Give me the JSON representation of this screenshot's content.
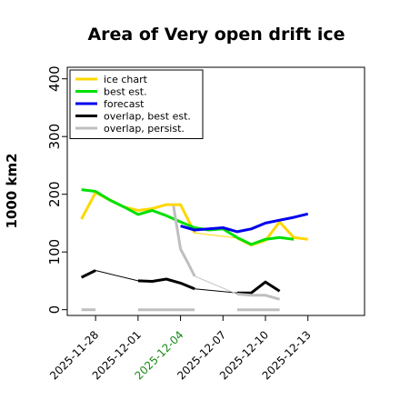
{
  "chart_data": {
    "type": "line",
    "title": "Area of Very open drift ice",
    "ylabel": "1000 km2",
    "ylim": [
      -10,
      420
    ],
    "yticks": [
      0,
      100,
      200,
      300,
      400
    ],
    "xlim": [
      -4,
      38
    ],
    "xticks": [
      {
        "x": 0,
        "label": "2025-11-28",
        "color": "#000000"
      },
      {
        "x": 6,
        "label": "2025-12-01",
        "color": "#000000"
      },
      {
        "x": 12,
        "label": "2025-12-04",
        "color": "#1a8a1a"
      },
      {
        "x": 18,
        "label": "2025-12-07",
        "color": "#000000"
      },
      {
        "x": 24,
        "label": "2025-12-10",
        "color": "#000000"
      },
      {
        "x": 30,
        "label": "2025-12-13",
        "color": "#000000"
      }
    ],
    "legend": {
      "position": "top-left",
      "frame": true
    },
    "series": [
      {
        "name": "ice chart",
        "color": "#ffd700",
        "width": 3,
        "segments": [
          [
            [
              -2,
              157
            ],
            [
              0,
              203
            ],
            [
              2,
              190
            ],
            [
              4,
              178
            ],
            [
              6,
              172
            ],
            [
              8,
              175
            ],
            [
              10,
              182
            ],
            [
              12,
              182
            ],
            [
              14,
              133
            ]
          ],
          [
            [
              20,
              124
            ],
            [
              22,
              112
            ],
            [
              24,
              120
            ],
            [
              26,
              152
            ],
            [
              28,
              125
            ],
            [
              30,
              122
            ]
          ]
        ]
      },
      {
        "name": "ice chart (thin)",
        "legend": false,
        "color": "#ffd700",
        "width": 1,
        "segments": [
          [
            [
              14,
              133
            ],
            [
              20,
              124
            ]
          ]
        ]
      },
      {
        "name": "best est.",
        "color": "#00e000",
        "width": 3,
        "segments": [
          [
            [
              -2,
              208
            ],
            [
              0,
              205
            ],
            [
              2,
              190
            ],
            [
              4,
              178
            ],
            [
              6,
              165
            ],
            [
              8,
              172
            ],
            [
              10,
              163
            ],
            [
              12,
              152
            ],
            [
              14,
              142
            ],
            [
              16,
              138
            ],
            [
              18,
              140
            ],
            [
              20,
              125
            ],
            [
              22,
              113
            ],
            [
              24,
              122
            ],
            [
              26,
              125
            ],
            [
              28,
              122
            ]
          ]
        ]
      },
      {
        "name": "forecast",
        "color": "#0000ee",
        "width": 3,
        "segments": [
          [
            [
              12,
              145
            ],
            [
              14,
              138
            ],
            [
              16,
              140
            ],
            [
              18,
              142
            ],
            [
              20,
              135
            ],
            [
              22,
              140
            ],
            [
              24,
              150
            ],
            [
              26,
              155
            ],
            [
              28,
              160
            ],
            [
              30,
              166
            ]
          ]
        ]
      },
      {
        "name": "overlap, best est.",
        "color": "#000000",
        "width": 3,
        "segments": [
          [
            [
              -2,
              56
            ],
            [
              0,
              68
            ]
          ],
          [
            [
              6,
              50
            ],
            [
              8,
              49
            ],
            [
              10,
              53
            ],
            [
              12,
              46
            ],
            [
              14,
              36
            ]
          ],
          [
            [
              20,
              29
            ],
            [
              22,
              29
            ],
            [
              24,
              48
            ],
            [
              26,
              32
            ]
          ]
        ]
      },
      {
        "name": "overlap, best est. (thin)",
        "legend": false,
        "color": "#000000",
        "width": 1,
        "segments": [
          [
            [
              0,
              68
            ],
            [
              6,
              50
            ]
          ],
          [
            [
              14,
              36
            ],
            [
              20,
              29
            ]
          ]
        ]
      },
      {
        "name": "overlap, persist.",
        "color": "#bfbfbf",
        "width": 3,
        "segments": [
          [
            [
              11,
              180
            ],
            [
              12,
              105
            ],
            [
              13,
              82
            ],
            [
              14,
              58
            ]
          ],
          [
            [
              20,
              27
            ],
            [
              22,
              25
            ],
            [
              24,
              25
            ],
            [
              26,
              18
            ]
          ],
          [
            [
              -2,
              0
            ],
            [
              0,
              0
            ]
          ],
          [
            [
              6,
              0
            ],
            [
              14,
              0
            ]
          ],
          [
            [
              20,
              0
            ],
            [
              26,
              0
            ]
          ]
        ]
      },
      {
        "name": "overlap, persist. (thin)",
        "legend": false,
        "color": "#bfbfbf",
        "width": 1,
        "segments": [
          [
            [
              14,
              58
            ],
            [
              20,
              27
            ]
          ]
        ]
      }
    ]
  }
}
